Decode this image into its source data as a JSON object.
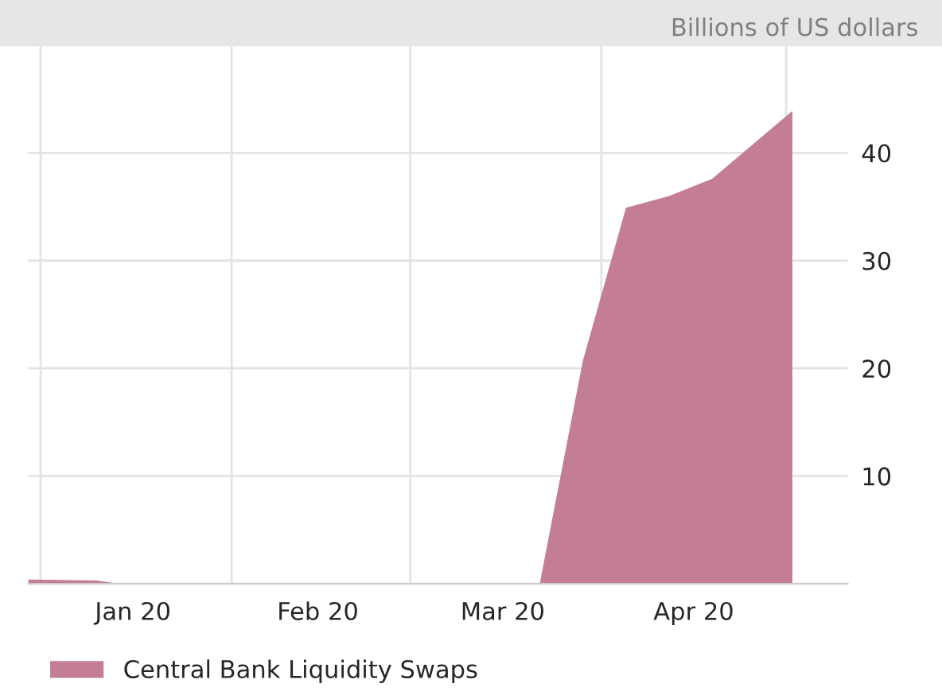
{
  "chart_data": {
    "type": "area",
    "ylabel": "Billions of US dollars",
    "x": [
      "2019-12-30",
      "2020-01-10",
      "2020-01-14",
      "2020-03-22",
      "2020-03-29",
      "2020-04-05",
      "2020-04-12",
      "2020-04-19",
      "2020-05-02"
    ],
    "series": [
      {
        "name": "Central Bank Liquidity Swaps",
        "color": "#c47e93",
        "values": [
          0.4,
          0.3,
          0,
          0,
          20.7,
          34.9,
          36,
          37.6,
          43.9
        ]
      }
    ],
    "xlim": [
      "2019-12-30",
      "2020-05-11"
    ],
    "xticks": [
      {
        "value": "2020-01-01",
        "label": null
      },
      {
        "value": "2020-01-16",
        "label": "Jan 20"
      },
      {
        "value": "2020-02-01",
        "label": null
      },
      {
        "value": "2020-02-15",
        "label": "Feb 20"
      },
      {
        "value": "2020-03-01",
        "label": null
      },
      {
        "value": "2020-03-16",
        "label": "Mar 20"
      },
      {
        "value": "2020-04-01",
        "label": null
      },
      {
        "value": "2020-04-16",
        "label": "Apr 20"
      },
      {
        "value": "2020-05-01",
        "label": null
      }
    ],
    "ylim": [
      0,
      50
    ],
    "yticks": [
      {
        "value": 0,
        "label": null
      },
      10,
      20,
      30,
      40
    ],
    "grid": true,
    "legend": "bottom left"
  }
}
